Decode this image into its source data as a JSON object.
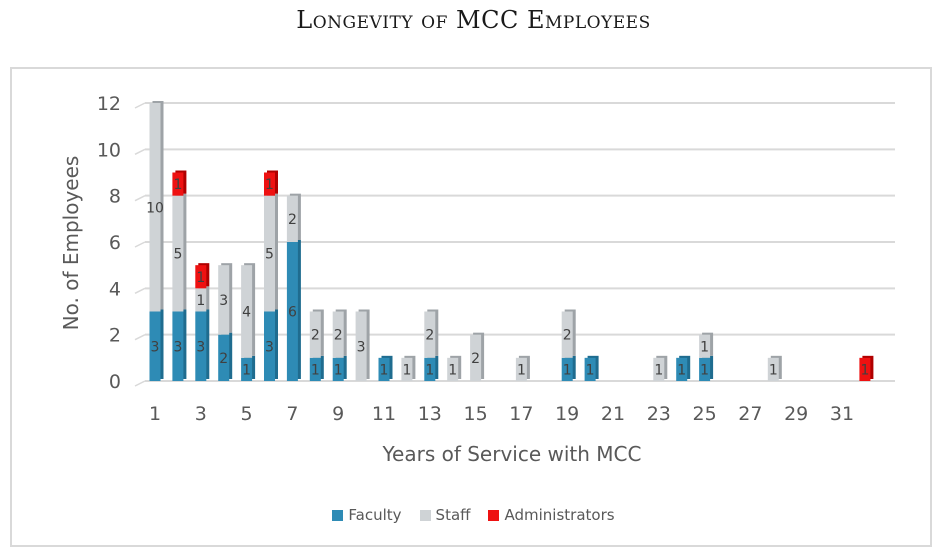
{
  "chart_data": {
    "type": "bar",
    "stacked": true,
    "title": "Longevity of MCC Employees",
    "xlabel": "Years of Service with MCC",
    "ylabel": "No. of Employees",
    "ylim": [
      0,
      12
    ],
    "yticks": [
      0,
      2,
      4,
      6,
      8,
      10,
      12
    ],
    "xticks": [
      1,
      3,
      5,
      7,
      9,
      11,
      13,
      15,
      17,
      19,
      21,
      23,
      25,
      27,
      29,
      31
    ],
    "grid": true,
    "legend_position": "bottom",
    "categories": [
      1,
      2,
      3,
      4,
      5,
      6,
      7,
      8,
      9,
      10,
      11,
      12,
      13,
      14,
      15,
      16,
      17,
      18,
      19,
      20,
      21,
      22,
      23,
      24,
      25,
      26,
      27,
      28,
      29,
      30,
      31,
      32
    ],
    "series": [
      {
        "name": "Faculty",
        "color": "#2e8bb5",
        "values": [
          3,
          3,
          3,
          2,
          1,
          3,
          6,
          1,
          1,
          0,
          1,
          0,
          1,
          0,
          0,
          0,
          0,
          0,
          1,
          1,
          0,
          0,
          0,
          1,
          1,
          0,
          0,
          0,
          0,
          0,
          0,
          0
        ]
      },
      {
        "name": "Staff",
        "color": "#cfd3d6",
        "values": [
          10,
          5,
          1,
          3,
          4,
          5,
          2,
          2,
          2,
          3,
          0,
          1,
          2,
          1,
          2,
          0,
          1,
          0,
          2,
          0,
          0,
          0,
          1,
          0,
          1,
          0,
          0,
          1,
          0,
          0,
          0,
          0
        ]
      },
      {
        "name": "Administrators",
        "color": "#ee1111",
        "values": [
          0,
          1,
          1,
          0,
          0,
          1,
          0,
          0,
          0,
          0,
          0,
          0,
          0,
          0,
          0,
          0,
          0,
          0,
          0,
          0,
          0,
          0,
          0,
          0,
          0,
          0,
          0,
          0,
          0,
          0,
          0,
          1
        ]
      }
    ]
  }
}
